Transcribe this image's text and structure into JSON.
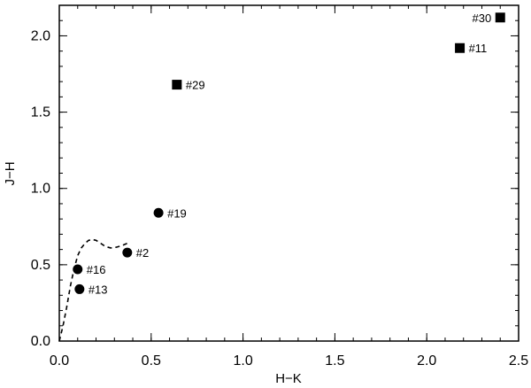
{
  "chart_data": {
    "type": "scatter",
    "title": "",
    "xlabel": "H−K",
    "ylabel": "J−H",
    "xlim": [
      0.0,
      2.5
    ],
    "ylim": [
      0.0,
      2.2
    ],
    "xticks": [
      "0.0",
      "0.5",
      "1.0",
      "1.5",
      "2.0",
      "2.5"
    ],
    "yticks": [
      "0.0",
      "0.5",
      "1.0",
      "1.5",
      "2.0"
    ],
    "xtick_values": [
      0.0,
      0.5,
      1.0,
      1.5,
      2.0,
      2.5
    ],
    "ytick_values": [
      0.0,
      0.5,
      1.0,
      1.5,
      2.0
    ],
    "grid": false,
    "series": [
      {
        "marker": "circle",
        "points": [
          {
            "label": "#2",
            "x": 0.37,
            "y": 0.58
          },
          {
            "label": "#13",
            "x": 0.11,
            "y": 0.34
          },
          {
            "label": "#16",
            "x": 0.1,
            "y": 0.47
          },
          {
            "label": "#19",
            "x": 0.54,
            "y": 0.84
          }
        ]
      },
      {
        "marker": "square",
        "points": [
          {
            "label": "#11",
            "x": 2.18,
            "y": 1.92
          },
          {
            "label": "#29",
            "x": 0.64,
            "y": 1.68
          },
          {
            "label": "#30",
            "x": 2.4,
            "y": 2.12
          }
        ]
      }
    ],
    "curve": {
      "style": "dashed",
      "x": [
        0.0,
        0.02,
        0.04,
        0.06,
        0.08,
        0.1,
        0.12,
        0.14,
        0.16,
        0.18,
        0.2,
        0.22,
        0.25,
        0.28,
        0.31,
        0.34,
        0.37
      ],
      "y": [
        0.0,
        0.1,
        0.22,
        0.36,
        0.47,
        0.56,
        0.61,
        0.64,
        0.66,
        0.665,
        0.66,
        0.645,
        0.62,
        0.61,
        0.615,
        0.625,
        0.64
      ]
    }
  }
}
